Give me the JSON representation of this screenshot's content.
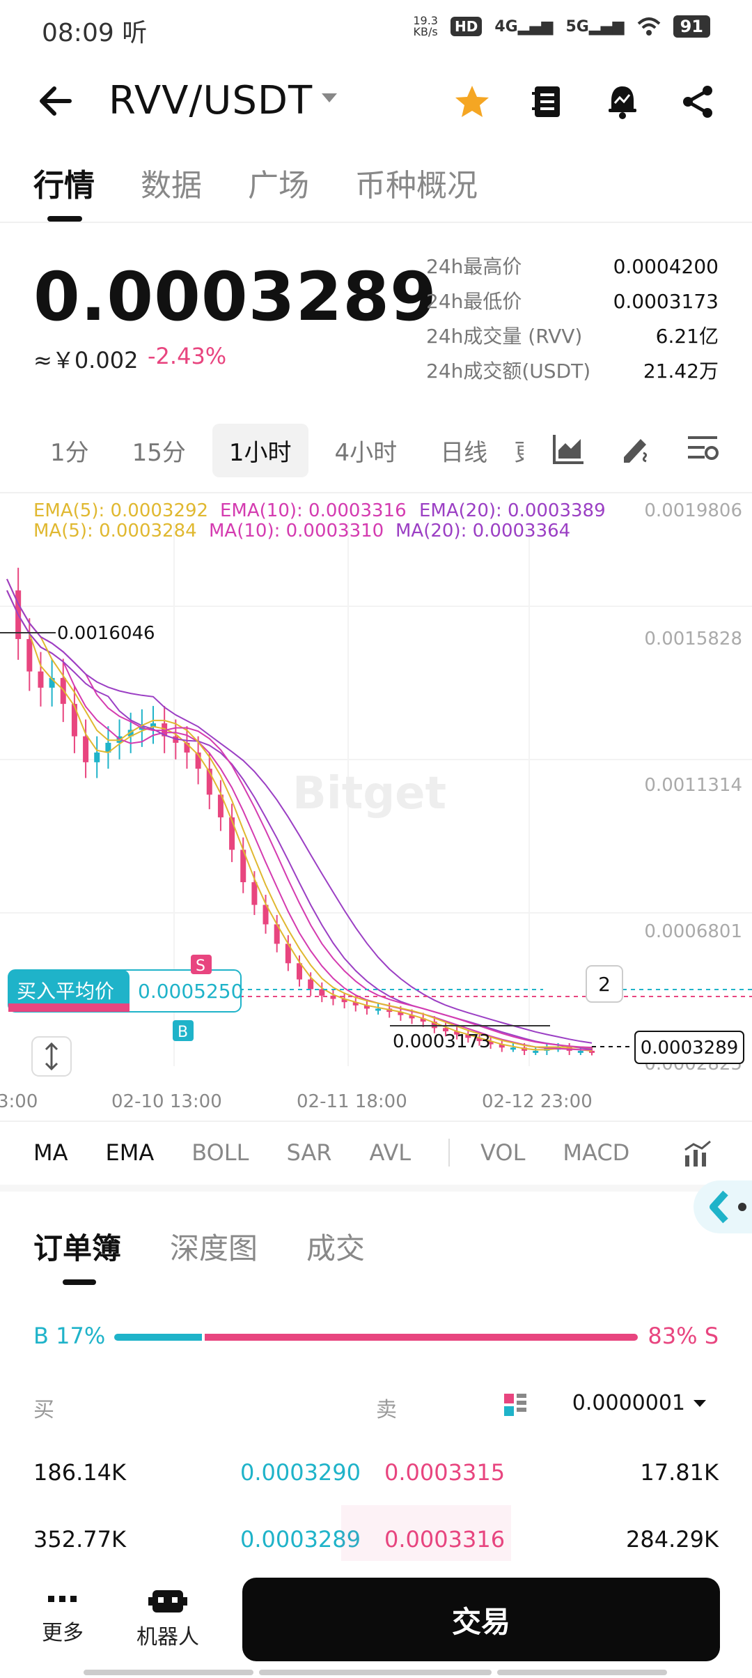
{
  "status_bar": {
    "time": "08:09",
    "time_suffix": "听",
    "net_speed_value": "19.3",
    "net_speed_unit": "KB/s",
    "hd_label": "HD",
    "signal_4g": "4G",
    "signal_5g": "5G",
    "battery": "91"
  },
  "header": {
    "title": "RVV/USDT",
    "icons": [
      "back-arrow-icon",
      "star-icon",
      "notebook-icon",
      "bell-icon",
      "share-icon"
    ],
    "favorite_color": "#f5a623"
  },
  "main_tabs": [
    {
      "label": "行情"
    },
    {
      "label": "数据"
    },
    {
      "label": "广场"
    },
    {
      "label": "币种概况"
    }
  ],
  "price": {
    "last": "0.0003289",
    "cny": "≈￥0.002",
    "change": "-2.43%",
    "stats": [
      {
        "label": "24h最高价",
        "value": "0.0004200"
      },
      {
        "label": "24h最低价",
        "value": "0.0003173"
      },
      {
        "label": "24h成交量 (RVV)",
        "value": "6.21亿"
      },
      {
        "label": "24h成交额(USDT)",
        "value": "21.42万"
      }
    ]
  },
  "intervals": [
    {
      "label": "1分"
    },
    {
      "label": "15分"
    },
    {
      "label": "1小时"
    },
    {
      "label": "4小时"
    },
    {
      "label": "日线"
    },
    {
      "label": "更"
    }
  ],
  "interval_icons": [
    "chart-type-icon",
    "draw-tool-icon",
    "settings-icon"
  ],
  "chart": {
    "ema": [
      "EMA(5): 0.0003292",
      "EMA(10): 0.0003316",
      "EMA(20): 0.0003389"
    ],
    "ma": [
      "MA(5): 0.0003284",
      "MA(10): 0.0003310",
      "MA(20): 0.0003364"
    ],
    "y_ticks": [
      "0.0019806",
      "0.0015828",
      "0.0011314",
      "0.0006801",
      "0.0002825"
    ],
    "x_ticks": [
      "3:00",
      "02-10 13:00",
      "02-11 18:00",
      "02-12 23:00"
    ],
    "high_marker": "0.0016046",
    "low_marker": "0.0003173",
    "current_price": "0.0003289",
    "avg_buy_label": "买入平均价",
    "avg_buy_value": "0.0005250",
    "count_badge": "2",
    "buy_marker": "B",
    "sell_marker": "S",
    "watermark": "Bitget"
  },
  "chart_data": {
    "type": "candlestick",
    "title": "",
    "ylim": [
      0.0002825,
      0.0019806
    ],
    "x_ticks": [
      "3:00",
      "02-10 13:00",
      "02-11 18:00",
      "02-12 23:00"
    ],
    "y_ticks": [
      0.0019806,
      0.0015828,
      0.0011314,
      0.0006801,
      0.0002825
    ],
    "close": [
      0.00175,
      0.0016,
      0.0015,
      0.00145,
      0.00148,
      0.0014,
      0.0013,
      0.00122,
      0.00125,
      0.00128,
      0.0013,
      0.00132,
      0.00133,
      0.00134,
      0.0013,
      0.00128,
      0.00125,
      0.0012,
      0.00112,
      0.00105,
      0.00095,
      0.00085,
      0.00078,
      0.00072,
      0.00066,
      0.0006,
      0.00055,
      0.00052,
      0.0005,
      0.00049,
      0.00048,
      0.00047,
      0.00046,
      0.00046,
      0.00045,
      0.00044,
      0.00043,
      0.00042,
      0.0004,
      0.00039,
      0.00038,
      0.00037,
      0.00036,
      0.00035,
      0.00034,
      0.00034,
      0.00033,
      0.00033,
      0.00034,
      0.00034,
      0.00033,
      0.00033,
      0.000329
    ],
    "series": [
      {
        "name": "EMA(5)",
        "color": "#e0b830"
      },
      {
        "name": "EMA(10)",
        "color": "#d43bb0"
      },
      {
        "name": "EMA(20)",
        "color": "#9b3fc4"
      },
      {
        "name": "MA(5)",
        "color": "#e0b830"
      },
      {
        "name": "MA(10)",
        "color": "#d43bb0"
      },
      {
        "name": "MA(20)",
        "color": "#9b3fc4"
      }
    ],
    "avg_buy_price": 0.000525,
    "current_price": 0.0003289
  },
  "indicators": {
    "main": [
      "MA",
      "EMA",
      "BOLL",
      "SAR",
      "AVL"
    ],
    "sub": [
      "VOL",
      "MACD"
    ]
  },
  "orderbook": {
    "tabs": [
      {
        "label": "订单簿"
      },
      {
        "label": "深度图"
      },
      {
        "label": "成交"
      }
    ],
    "buy_pct_label": "B 17%",
    "sell_pct_label": "83% S",
    "buy_ratio": 0.17,
    "col_buy": "买",
    "col_sell": "卖",
    "precision": "0.0000001",
    "rows": [
      {
        "buy_qty": "186.14K",
        "buy_price": "0.0003290",
        "sell_price": "0.0003315",
        "sell_qty": "17.81K"
      },
      {
        "buy_qty": "352.77K",
        "buy_price": "0.0003289",
        "sell_price": "0.0003316",
        "sell_qty": "284.29K"
      }
    ]
  },
  "bottom_nav": {
    "more_label": "更多",
    "bot_label": "机器人",
    "trade_label": "交易"
  },
  "colors": {
    "up": "#1fb3c9",
    "down": "#e8457f",
    "accent": "#f5a623"
  }
}
